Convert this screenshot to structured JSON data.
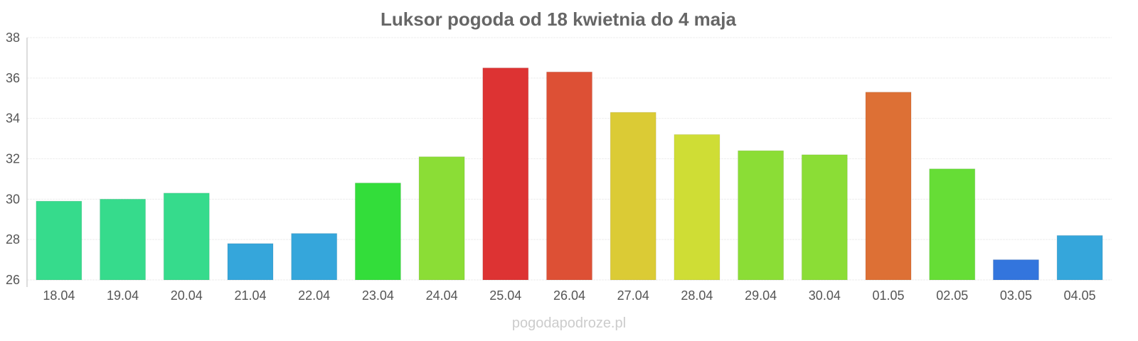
{
  "chart_data": {
    "type": "bar",
    "title": "Luksor pogoda od 18 kwietnia do 4 maja",
    "categories": [
      "18.04",
      "19.04",
      "20.04",
      "21.04",
      "22.04",
      "23.04",
      "24.04",
      "25.04",
      "26.04",
      "27.04",
      "28.04",
      "29.04",
      "30.04",
      "01.05",
      "02.05",
      "03.05",
      "04.05"
    ],
    "values": [
      29.9,
      30.0,
      30.3,
      27.8,
      28.3,
      30.8,
      32.1,
      36.5,
      36.3,
      34.3,
      33.2,
      32.4,
      32.2,
      35.3,
      31.5,
      27.0,
      28.2
    ],
    "colors": [
      "#36db8c",
      "#36db8c",
      "#36db8c",
      "#35a6db",
      "#35a6db",
      "#33dd3a",
      "#8bdd36",
      "#dd3333",
      "#dd5035",
      "#dbcb35",
      "#cfdd35",
      "#8bdd36",
      "#8bdd36",
      "#dd7035",
      "#66dd36",
      "#3375dd",
      "#35a6db"
    ],
    "ylim": [
      26,
      38
    ],
    "yticks": [
      26,
      28,
      30,
      32,
      34,
      36,
      38
    ],
    "grid": true,
    "xlabel": "",
    "ylabel": ""
  },
  "credit": "pogodapodroze.pl"
}
